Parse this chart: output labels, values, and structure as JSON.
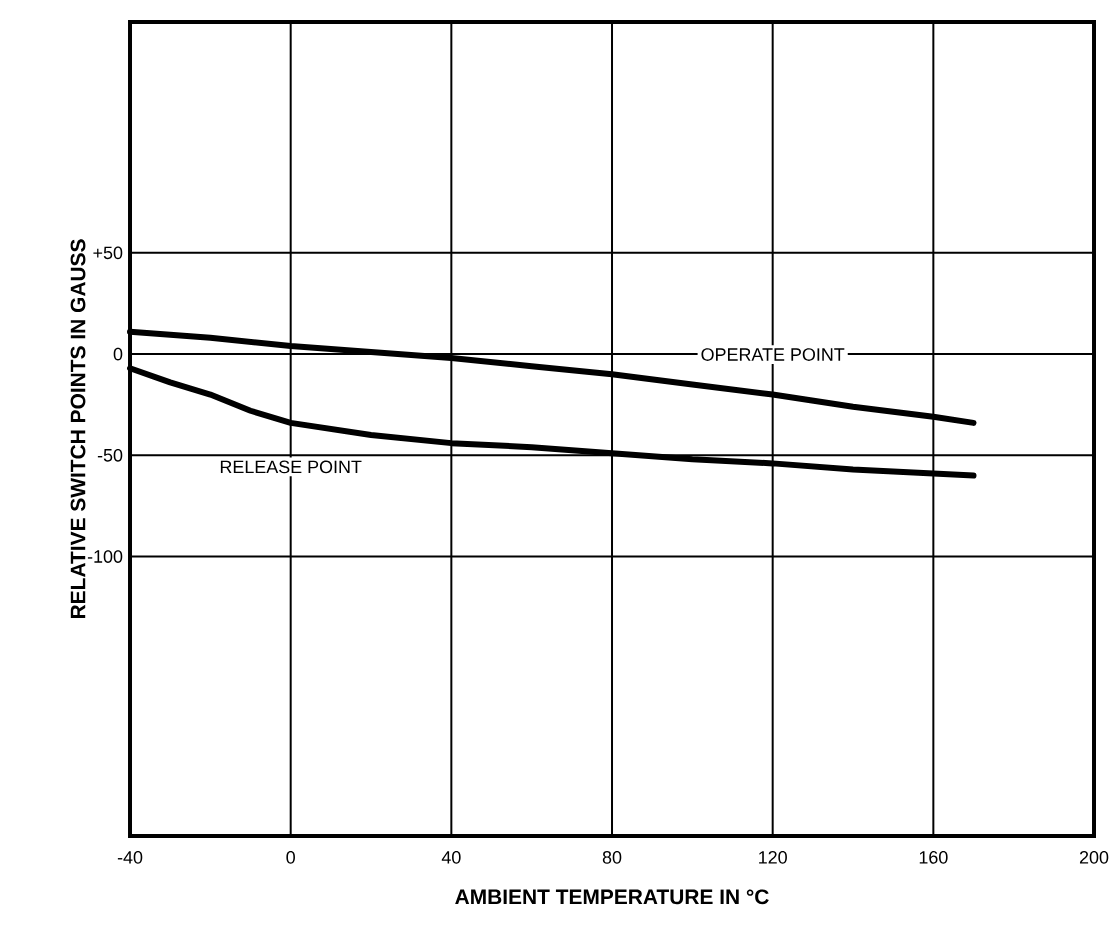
{
  "chart_data": {
    "type": "line",
    "xlabel": "AMBIENT TEMPERATURE IN °C",
    "ylabel": "RELATIVE SWITCH POINTS IN GAUSS",
    "xlim": [
      -40,
      200
    ],
    "xticks": [
      -40,
      0,
      40,
      80,
      120,
      160,
      200
    ],
    "ylim": [
      -238,
      164
    ],
    "yticks": [
      {
        "value": 50,
        "label": "+50"
      },
      0,
      -50,
      -100
    ],
    "grid": true,
    "marker": "none",
    "line_style": "solid",
    "series": [
      {
        "name": "OPERATE POINT",
        "color": "#000000",
        "x": [
          -40,
          -20,
          0,
          20,
          40,
          60,
          80,
          100,
          120,
          140,
          160,
          170
        ],
        "values": [
          11,
          8,
          4,
          1,
          -2,
          -6,
          -10,
          -15,
          -20,
          -26,
          -31,
          -34
        ]
      },
      {
        "name": "RELEASE POINT",
        "color": "#000000",
        "x": [
          -40,
          -30,
          -20,
          -10,
          0,
          20,
          40,
          60,
          80,
          100,
          120,
          140,
          160,
          170
        ],
        "values": [
          -7,
          -14,
          -20,
          -28,
          -34,
          -40,
          -44,
          -46,
          -49,
          -52,
          -54,
          -57,
          -59,
          -60
        ]
      }
    ]
  }
}
